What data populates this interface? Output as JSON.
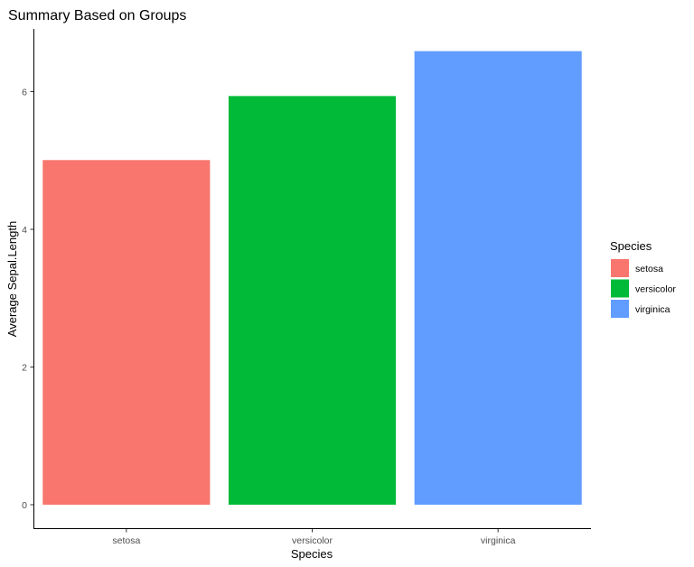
{
  "chart_data": {
    "type": "bar",
    "title": "Summary Based on Groups",
    "xlabel": "Species",
    "ylabel": "Average Sepal.Length",
    "categories": [
      "setosa",
      "versicolor",
      "virginica"
    ],
    "values": [
      5.006,
      5.936,
      6.588
    ],
    "colors": [
      "#F8766D",
      "#00BA38",
      "#619CFF"
    ],
    "ylim": [
      0,
      6.9
    ],
    "yticks": [
      0,
      2,
      4,
      6
    ],
    "grid": false,
    "legend": {
      "title": "Species",
      "position": "right",
      "entries": [
        "setosa",
        "versicolor",
        "virginica"
      ]
    }
  }
}
